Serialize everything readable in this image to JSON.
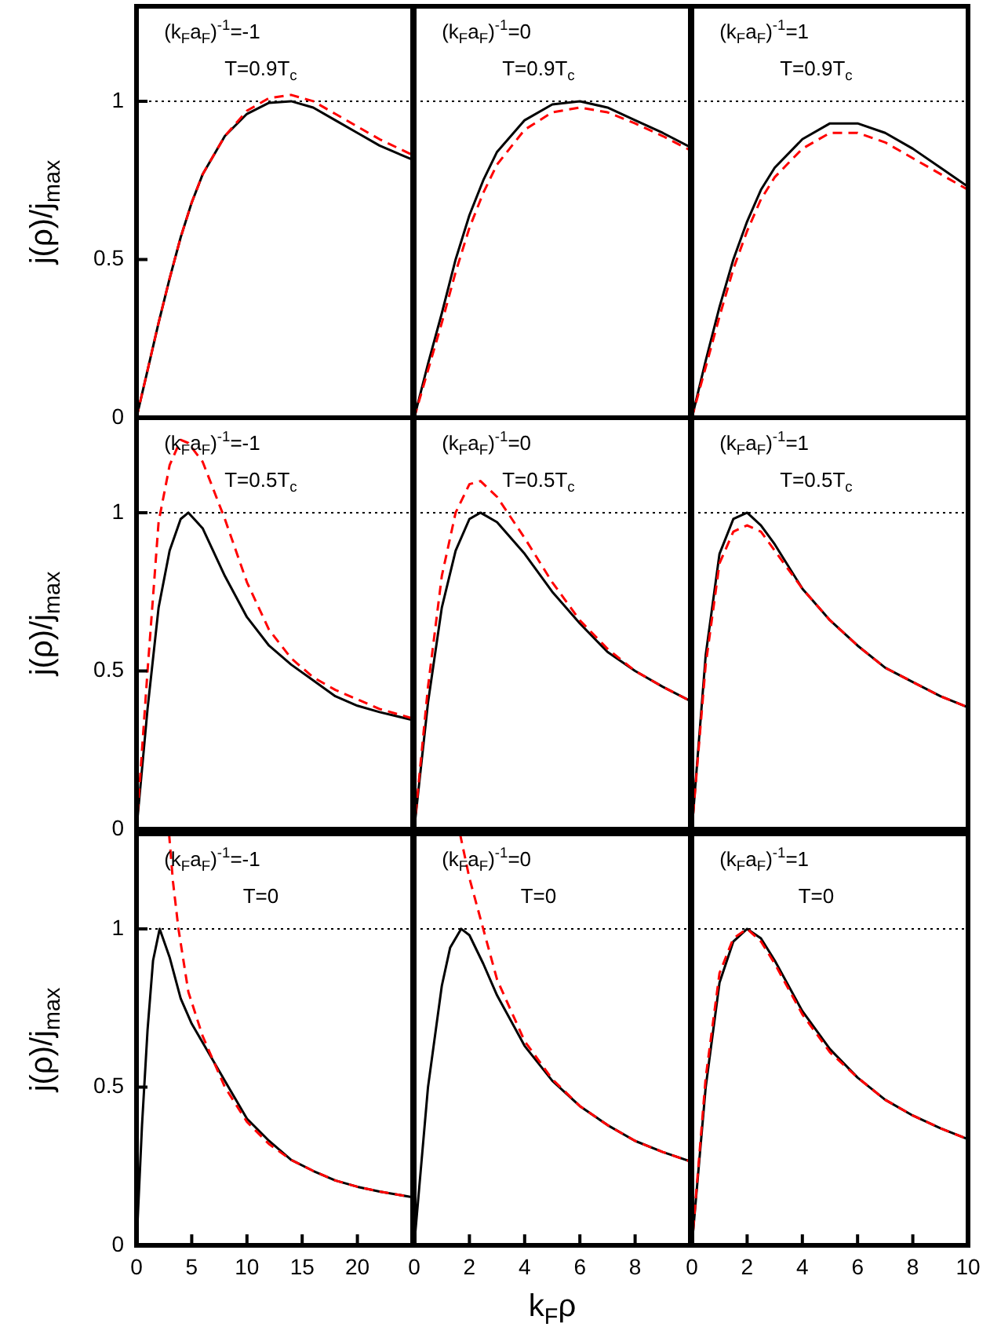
{
  "chart_data": [
    {
      "type": "line",
      "ylabel": "j(ρ)/j$_{max}$",
      "annotations": [
        "(k$_{F}$a$_{F}$)$^{-1}$=-1",
        "T=0.9T$_{c}$"
      ],
      "xlim": [
        0,
        25
      ],
      "ylim": [
        0,
        1.3
      ],
      "yticks": [
        0,
        0.5,
        1
      ],
      "tick_labels": "y",
      "marker": "none",
      "ref_lines": [
        {
          "axis": "y",
          "value": 1,
          "line_style": "dotted",
          "color": "#000000"
        }
      ],
      "series": [
        {
          "color": "#000000",
          "line_style": "solid",
          "x": [
            0,
            1,
            2,
            3,
            4,
            5,
            6,
            8,
            10,
            12,
            14,
            16,
            18,
            20,
            22,
            25
          ],
          "values": [
            0,
            0.15,
            0.3,
            0.44,
            0.57,
            0.68,
            0.77,
            0.89,
            0.96,
            0.995,
            1.0,
            0.98,
            0.94,
            0.9,
            0.86,
            0.815
          ]
        },
        {
          "color": "#ff0000",
          "line_style": "dashed",
          "x": [
            0,
            1,
            2,
            3,
            4,
            5,
            6,
            8,
            10,
            12,
            14,
            16,
            18,
            20,
            22,
            25
          ],
          "values": [
            0,
            0.15,
            0.3,
            0.44,
            0.57,
            0.68,
            0.77,
            0.89,
            0.97,
            1.01,
            1.02,
            1.0,
            0.96,
            0.92,
            0.88,
            0.83
          ]
        }
      ]
    },
    {
      "type": "line",
      "annotations": [
        "(k$_{F}$a$_{F}$)$^{-1}$=0",
        "T=0.9T$_{c}$"
      ],
      "xlim": [
        0,
        10
      ],
      "ylim": [
        0,
        1.3
      ],
      "tick_labels": false,
      "marker": "none",
      "ref_lines": [
        {
          "axis": "y",
          "value": 1,
          "line_style": "dotted",
          "color": "#000000"
        }
      ],
      "series": [
        {
          "color": "#000000",
          "line_style": "solid",
          "x": [
            0,
            0.5,
            1,
            1.5,
            2,
            2.5,
            3,
            4,
            5,
            6,
            7,
            8,
            9,
            10
          ],
          "values": [
            0,
            0.17,
            0.33,
            0.5,
            0.64,
            0.75,
            0.84,
            0.94,
            0.99,
            1.0,
            0.98,
            0.94,
            0.9,
            0.855
          ]
        },
        {
          "color": "#ff0000",
          "line_style": "dashed",
          "x": [
            0,
            0.5,
            1,
            1.5,
            2,
            2.5,
            3,
            4,
            5,
            6,
            7,
            8,
            9,
            10
          ],
          "values": [
            0,
            0.15,
            0.3,
            0.46,
            0.6,
            0.71,
            0.8,
            0.91,
            0.965,
            0.98,
            0.965,
            0.93,
            0.89,
            0.845
          ]
        }
      ]
    },
    {
      "type": "line",
      "annotations": [
        "(k$_{F}$a$_{F}$)$^{-1}$=1",
        "T=0.9T$_{c}$"
      ],
      "xlim": [
        0,
        10
      ],
      "ylim": [
        0,
        1.3
      ],
      "tick_labels": false,
      "marker": "none",
      "ref_lines": [
        {
          "axis": "y",
          "value": 1,
          "line_style": "dotted",
          "color": "#000000"
        }
      ],
      "series": [
        {
          "color": "#000000",
          "line_style": "solid",
          "x": [
            0,
            0.5,
            1,
            1.5,
            2,
            2.5,
            3,
            4,
            5,
            6,
            7,
            8,
            9,
            10
          ],
          "values": [
            0,
            0.18,
            0.35,
            0.5,
            0.62,
            0.72,
            0.79,
            0.88,
            0.93,
            0.93,
            0.9,
            0.85,
            0.79,
            0.73
          ]
        },
        {
          "color": "#ff0000",
          "line_style": "dashed",
          "x": [
            0,
            0.5,
            1,
            1.5,
            2,
            2.5,
            3,
            4,
            5,
            6,
            7,
            8,
            9,
            10
          ],
          "values": [
            0,
            0.16,
            0.32,
            0.47,
            0.59,
            0.69,
            0.76,
            0.85,
            0.9,
            0.9,
            0.87,
            0.82,
            0.77,
            0.72
          ]
        }
      ]
    },
    {
      "type": "line",
      "ylabel": "j(ρ)/j$_{max}$",
      "annotations": [
        "(k$_{F}$a$_{F}$)$^{-1}$=-1",
        "T=0.5T$_{c}$"
      ],
      "xlim": [
        0,
        25
      ],
      "ylim": [
        0,
        1.3
      ],
      "yticks": [
        0,
        0.5,
        1
      ],
      "tick_labels": "y",
      "marker": "none",
      "ref_lines": [
        {
          "axis": "y",
          "value": 1,
          "line_style": "dotted",
          "color": "#000000"
        }
      ],
      "series": [
        {
          "color": "#000000",
          "line_style": "solid",
          "x": [
            0,
            1,
            2,
            3,
            4,
            4.7,
            6,
            8,
            10,
            12,
            14,
            16,
            18,
            20,
            22,
            25
          ],
          "values": [
            0,
            0.38,
            0.7,
            0.88,
            0.98,
            1.0,
            0.95,
            0.8,
            0.67,
            0.58,
            0.52,
            0.47,
            0.42,
            0.39,
            0.37,
            0.345
          ]
        },
        {
          "color": "#ff0000",
          "line_style": "dashed",
          "x": [
            0,
            1,
            2,
            3,
            4,
            4.7,
            6,
            8,
            10,
            12,
            14,
            16,
            18,
            20,
            22,
            25
          ],
          "values": [
            0,
            0.5,
            0.97,
            1.15,
            1.23,
            1.22,
            1.16,
            0.98,
            0.78,
            0.63,
            0.54,
            0.48,
            0.44,
            0.41,
            0.38,
            0.35
          ]
        }
      ]
    },
    {
      "type": "line",
      "annotations": [
        "(k$_{F}$a$_{F}$)$^{-1}$=0",
        "T=0.5T$_{c}$"
      ],
      "xlim": [
        0,
        10
      ],
      "ylim": [
        0,
        1.3
      ],
      "tick_labels": false,
      "marker": "none",
      "ref_lines": [
        {
          "axis": "y",
          "value": 1,
          "line_style": "dotted",
          "color": "#000000"
        }
      ],
      "series": [
        {
          "color": "#000000",
          "line_style": "solid",
          "x": [
            0,
            0.5,
            1,
            1.5,
            2,
            2.4,
            3,
            4,
            5,
            6,
            7,
            8,
            9,
            10
          ],
          "values": [
            0,
            0.4,
            0.7,
            0.88,
            0.98,
            1.0,
            0.97,
            0.87,
            0.75,
            0.65,
            0.56,
            0.5,
            0.45,
            0.405
          ]
        },
        {
          "color": "#ff0000",
          "line_style": "dashed",
          "x": [
            0,
            0.5,
            1,
            1.5,
            2,
            2.4,
            3,
            4,
            5,
            6,
            7,
            8,
            9,
            10
          ],
          "values": [
            0,
            0.45,
            0.8,
            1.0,
            1.09,
            1.1,
            1.05,
            0.92,
            0.78,
            0.66,
            0.57,
            0.5,
            0.45,
            0.405
          ]
        }
      ]
    },
    {
      "type": "line",
      "annotations": [
        "(k$_{F}$a$_{F}$)$^{-1}$=1",
        "T=0.5T$_{c}$"
      ],
      "xlim": [
        0,
        10
      ],
      "ylim": [
        0,
        1.3
      ],
      "tick_labels": false,
      "marker": "none",
      "ref_lines": [
        {
          "axis": "y",
          "value": 1,
          "line_style": "dotted",
          "color": "#000000"
        }
      ],
      "series": [
        {
          "color": "#000000",
          "line_style": "solid",
          "x": [
            0,
            0.5,
            1,
            1.5,
            2,
            2.5,
            3,
            4,
            5,
            6,
            7,
            8,
            9,
            10
          ],
          "values": [
            0,
            0.55,
            0.87,
            0.98,
            1.0,
            0.96,
            0.9,
            0.76,
            0.66,
            0.58,
            0.51,
            0.465,
            0.42,
            0.385
          ]
        },
        {
          "color": "#ff0000",
          "line_style": "dashed",
          "x": [
            0,
            0.5,
            1,
            1.5,
            2,
            2.5,
            3,
            4,
            5,
            6,
            7,
            8,
            9,
            10
          ],
          "values": [
            0,
            0.52,
            0.84,
            0.94,
            0.96,
            0.94,
            0.88,
            0.76,
            0.66,
            0.58,
            0.51,
            0.465,
            0.42,
            0.385
          ]
        }
      ]
    },
    {
      "type": "line",
      "ylabel": "j(ρ)/j$_{max}$",
      "annotations": [
        "(k$_{F}$a$_{F}$)$^{-1}$=-1",
        "T=0"
      ],
      "xlim": [
        0,
        25
      ],
      "xticks": [
        0,
        5,
        10,
        15,
        20
      ],
      "ylim": [
        0,
        1.3
      ],
      "yticks": [
        0,
        0.5,
        1
      ],
      "marker": "none",
      "ref_lines": [
        {
          "axis": "y",
          "value": 1,
          "line_style": "dotted",
          "color": "#000000"
        }
      ],
      "series": [
        {
          "color": "#000000",
          "line_style": "solid",
          "x": [
            0,
            0.5,
            1,
            1.5,
            2.1,
            3,
            4,
            5,
            6,
            8,
            10,
            12,
            14,
            16,
            18,
            20,
            22,
            25
          ],
          "values": [
            0,
            0.38,
            0.68,
            0.9,
            1.0,
            0.91,
            0.78,
            0.7,
            0.64,
            0.52,
            0.4,
            0.33,
            0.27,
            0.235,
            0.205,
            0.185,
            0.17,
            0.152
          ]
        },
        {
          "color": "#ff0000",
          "line_style": "dashed",
          "x": [
            2.95,
            3.3,
            3.8,
            4.7,
            6,
            8,
            10,
            12,
            14,
            16,
            18,
            20,
            22,
            25
          ],
          "values": [
            1.3,
            1.15,
            1.0,
            0.8,
            0.66,
            0.5,
            0.39,
            0.32,
            0.27,
            0.235,
            0.205,
            0.185,
            0.17,
            0.152
          ]
        }
      ]
    },
    {
      "type": "line",
      "xlabel": "k$_{F}$ρ",
      "annotations": [
        "(k$_{F}$a$_{F}$)$^{-1}$=0",
        "T=0"
      ],
      "xlim": [
        0,
        10
      ],
      "xticks": [
        0,
        2,
        4,
        6,
        8
      ],
      "ylim": [
        0,
        1.3
      ],
      "tick_labels": "x",
      "marker": "none",
      "ref_lines": [
        {
          "axis": "y",
          "value": 1,
          "line_style": "dotted",
          "color": "#000000"
        }
      ],
      "series": [
        {
          "color": "#000000",
          "line_style": "solid",
          "x": [
            0,
            0.5,
            1,
            1.3,
            1.7,
            2,
            2.5,
            3,
            4,
            5,
            6,
            7,
            8,
            9,
            10
          ],
          "values": [
            0,
            0.5,
            0.82,
            0.94,
            1.0,
            0.98,
            0.89,
            0.79,
            0.63,
            0.52,
            0.44,
            0.38,
            0.33,
            0.295,
            0.265
          ]
        },
        {
          "color": "#ff0000",
          "line_style": "dashed",
          "x": [
            1.66,
            2,
            2.5,
            3,
            4,
            5,
            6,
            7,
            8,
            9,
            10
          ],
          "values": [
            1.3,
            1.16,
            1.0,
            0.84,
            0.645,
            0.525,
            0.44,
            0.38,
            0.33,
            0.295,
            0.265
          ]
        }
      ]
    },
    {
      "type": "line",
      "annotations": [
        "(k$_{F}$a$_{F}$)$^{-1}$=1",
        "T=0"
      ],
      "xlim": [
        0,
        10
      ],
      "xticks": [
        0,
        2,
        4,
        6,
        8,
        10
      ],
      "ylim": [
        0,
        1.3
      ],
      "tick_labels": "x",
      "marker": "none",
      "ref_lines": [
        {
          "axis": "y",
          "value": 1,
          "line_style": "dotted",
          "color": "#000000"
        }
      ],
      "series": [
        {
          "color": "#000000",
          "line_style": "solid",
          "x": [
            0,
            0.5,
            1,
            1.5,
            2,
            2.5,
            3,
            4,
            5,
            6,
            7,
            8,
            9,
            10
          ],
          "values": [
            0,
            0.5,
            0.83,
            0.96,
            1.0,
            0.97,
            0.9,
            0.74,
            0.62,
            0.53,
            0.46,
            0.41,
            0.37,
            0.335
          ]
        },
        {
          "color": "#ff0000",
          "line_style": "dashed",
          "x": [
            0,
            0.5,
            1,
            1.5,
            2,
            2.5,
            3,
            4,
            5,
            6,
            7,
            8,
            9,
            10
          ],
          "values": [
            0,
            0.53,
            0.86,
            0.97,
            1.0,
            0.96,
            0.89,
            0.73,
            0.61,
            0.53,
            0.46,
            0.41,
            0.37,
            0.335
          ]
        }
      ]
    }
  ]
}
